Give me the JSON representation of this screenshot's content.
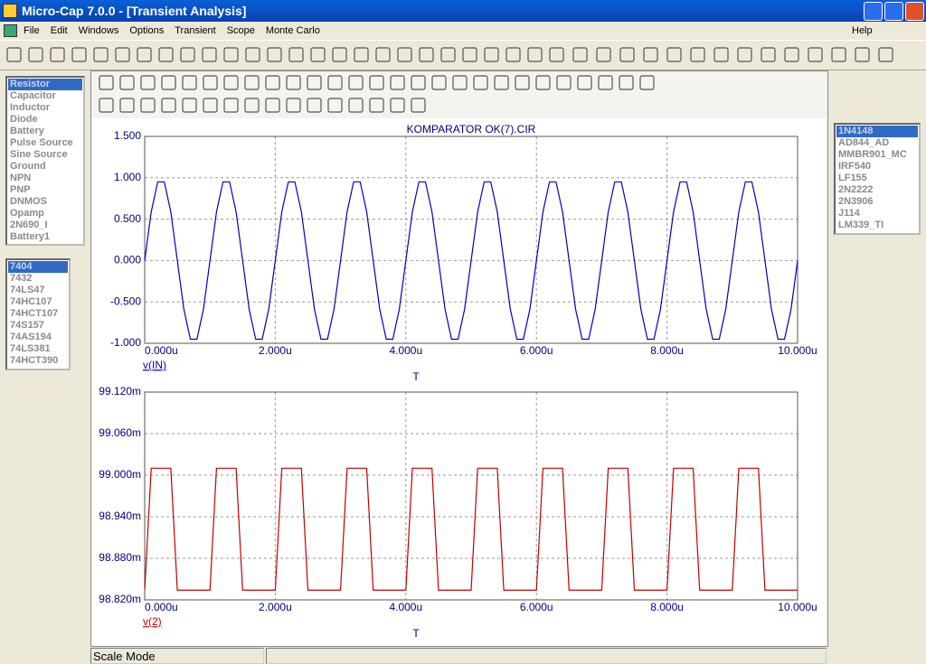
{
  "window": {
    "title": "Micro-Cap 7.0.0 - [Transient Analysis]"
  },
  "menu": [
    "File",
    "Edit",
    "Windows",
    "Options",
    "Transient",
    "Scope",
    "Monte Carlo"
  ],
  "menu_right": "Help",
  "component_list": [
    "Resistor",
    "Capacitor",
    "Inductor",
    "Diode",
    "Battery",
    "Pulse Source",
    "Sine Source",
    "Ground",
    "NPN",
    "PNP",
    "DNMOS",
    "Opamp",
    "2N690_I",
    "Battery1"
  ],
  "logic_list": [
    "7404",
    "7432",
    "74LS47",
    "74HC107",
    "74HCT107",
    "74S157",
    "74AS194",
    "74LS381",
    "74HCT390"
  ],
  "model_list": [
    "1N4148",
    "AD844_AD",
    "MMBR901_MC",
    "IRF540",
    "LF155",
    "2N2222",
    "2N3906",
    "J114",
    "LM339_TI"
  ],
  "status_bar": "Scale Mode",
  "chart_data": [
    {
      "type": "line",
      "title": "KOMPARATOR OK(7).CIR",
      "xlabel": "T",
      "x": [
        0,
        0.1,
        0.2,
        0.3,
        0.4,
        0.5,
        0.6,
        0.7,
        0.8,
        0.9,
        1,
        1.1,
        1.2,
        1.3,
        1.4,
        1.5,
        1.6,
        1.7,
        1.8,
        1.9,
        2,
        2.1,
        2.2,
        2.3,
        2.4,
        2.5,
        2.6,
        2.7,
        2.8,
        2.9,
        3,
        3.1,
        3.2,
        3.3,
        3.4,
        3.5,
        3.6,
        3.7,
        3.8,
        3.9,
        4,
        4.1,
        4.2,
        4.3,
        4.4,
        4.5,
        4.6,
        4.7,
        4.8,
        4.9,
        5,
        5.1,
        5.2,
        5.3,
        5.4,
        5.5,
        5.6,
        5.7,
        5.8,
        5.9,
        6,
        6.1,
        6.2,
        6.3,
        6.4,
        6.5,
        6.6,
        6.7,
        6.8,
        6.9,
        7,
        7.1,
        7.2,
        7.3,
        7.4,
        7.5,
        7.6,
        7.7,
        7.8,
        7.9,
        8,
        8.1,
        8.2,
        8.3,
        8.4,
        8.5,
        8.6,
        8.7,
        8.8,
        8.9,
        9,
        9.1,
        9.2,
        9.3,
        9.4,
        9.5,
        9.6,
        9.7,
        9.8,
        9.9,
        10
      ],
      "series": [
        {
          "name": "v(IN)",
          "color": "#0000c0",
          "values": [
            0,
            0.588,
            0.951,
            0.951,
            0.588,
            0,
            -0.588,
            -0.951,
            -0.951,
            -0.588,
            0,
            0.588,
            0.951,
            0.951,
            0.588,
            0,
            -0.588,
            -0.951,
            -0.951,
            -0.588,
            0,
            0.588,
            0.951,
            0.951,
            0.588,
            0,
            -0.588,
            -0.951,
            -0.951,
            -0.588,
            0,
            0.588,
            0.951,
            0.951,
            0.588,
            0,
            -0.588,
            -0.951,
            -0.951,
            -0.588,
            0,
            0.588,
            0.951,
            0.951,
            0.588,
            0,
            -0.588,
            -0.951,
            -0.951,
            -0.588,
            0,
            0.588,
            0.951,
            0.951,
            0.588,
            0,
            -0.588,
            -0.951,
            -0.951,
            -0.588,
            0,
            0.588,
            0.951,
            0.951,
            0.588,
            0,
            -0.588,
            -0.951,
            -0.951,
            -0.588,
            0,
            0.588,
            0.951,
            0.951,
            0.588,
            0,
            -0.588,
            -0.951,
            -0.951,
            -0.588,
            0,
            0.588,
            0.951,
            0.951,
            0.588,
            0,
            -0.588,
            -0.951,
            -0.951,
            -0.588,
            0,
            0.588,
            0.951,
            0.951,
            0.588,
            0,
            -0.588,
            -0.951,
            -0.951,
            -0.588,
            0
          ]
        }
      ],
      "xlim": [
        0,
        10
      ],
      "ylim": [
        -1,
        1.5
      ],
      "xticks": [
        {
          "value": 0,
          "label": "0.000u"
        },
        {
          "value": 2,
          "label": "2.000u"
        },
        {
          "value": 4,
          "label": "4.000u"
        },
        {
          "value": 6,
          "label": "6.000u"
        },
        {
          "value": 8,
          "label": "8.000u"
        },
        {
          "value": 10,
          "label": "10.000u"
        }
      ],
      "yticks": [
        {
          "value": -1,
          "label": "-1.000"
        },
        {
          "value": -0.5,
          "label": "-0.500"
        },
        {
          "value": 0,
          "label": "0.000"
        },
        {
          "value": 0.5,
          "label": "0.500"
        },
        {
          "value": 1,
          "label": "1.000"
        },
        {
          "value": 1.5,
          "label": "1.500"
        }
      ],
      "grid": true
    },
    {
      "type": "line",
      "xlabel": "T",
      "x": [
        0,
        0.1,
        0.2,
        0.3,
        0.4,
        0.5,
        0.6,
        0.7,
        0.8,
        0.9,
        1,
        1.1,
        1.2,
        1.3,
        1.4,
        1.5,
        1.6,
        1.7,
        1.8,
        1.9,
        2,
        2.1,
        2.2,
        2.3,
        2.4,
        2.5,
        2.6,
        2.7,
        2.8,
        2.9,
        3,
        3.1,
        3.2,
        3.3,
        3.4,
        3.5,
        3.6,
        3.7,
        3.8,
        3.9,
        4,
        4.1,
        4.2,
        4.3,
        4.4,
        4.5,
        4.6,
        4.7,
        4.8,
        4.9,
        5,
        5.1,
        5.2,
        5.3,
        5.4,
        5.5,
        5.6,
        5.7,
        5.8,
        5.9,
        6,
        6.1,
        6.2,
        6.3,
        6.4,
        6.5,
        6.6,
        6.7,
        6.8,
        6.9,
        7,
        7.1,
        7.2,
        7.3,
        7.4,
        7.5,
        7.6,
        7.7,
        7.8,
        7.9,
        8,
        8.1,
        8.2,
        8.3,
        8.4,
        8.5,
        8.6,
        8.7,
        8.8,
        8.9,
        9,
        9.1,
        9.2,
        9.3,
        9.4,
        9.5,
        9.6,
        9.7,
        9.8,
        9.9,
        10
      ],
      "series": [
        {
          "name": "v(2)",
          "color": "#c00000",
          "values": [
            98.834,
            99.01,
            99.01,
            99.01,
            99.01,
            98.834,
            98.834,
            98.834,
            98.834,
            98.834,
            98.834,
            99.01,
            99.01,
            99.01,
            99.01,
            98.834,
            98.834,
            98.834,
            98.834,
            98.834,
            98.834,
            99.01,
            99.01,
            99.01,
            99.01,
            98.834,
            98.834,
            98.834,
            98.834,
            98.834,
            98.834,
            99.01,
            99.01,
            99.01,
            99.01,
            98.834,
            98.834,
            98.834,
            98.834,
            98.834,
            98.834,
            99.01,
            99.01,
            99.01,
            99.01,
            98.834,
            98.834,
            98.834,
            98.834,
            98.834,
            98.834,
            99.01,
            99.01,
            99.01,
            99.01,
            98.834,
            98.834,
            98.834,
            98.834,
            98.834,
            98.834,
            99.01,
            99.01,
            99.01,
            99.01,
            98.834,
            98.834,
            98.834,
            98.834,
            98.834,
            98.834,
            99.01,
            99.01,
            99.01,
            99.01,
            98.834,
            98.834,
            98.834,
            98.834,
            98.834,
            98.834,
            99.01,
            99.01,
            99.01,
            99.01,
            98.834,
            98.834,
            98.834,
            98.834,
            98.834,
            98.834,
            99.01,
            99.01,
            99.01,
            99.01,
            98.834,
            98.834,
            98.834,
            98.834,
            98.834,
            98.834
          ]
        }
      ],
      "xlim": [
        0,
        10
      ],
      "ylim": [
        98.82,
        99.12
      ],
      "xticks": [
        {
          "value": 0,
          "label": "0.000u"
        },
        {
          "value": 2,
          "label": "2.000u"
        },
        {
          "value": 4,
          "label": "4.000u"
        },
        {
          "value": 6,
          "label": "6.000u"
        },
        {
          "value": 8,
          "label": "8.000u"
        },
        {
          "value": 10,
          "label": "10.000u"
        }
      ],
      "yticks": [
        {
          "value": 98.82,
          "label": "98.820m"
        },
        {
          "value": 98.88,
          "label": "98.880m"
        },
        {
          "value": 98.94,
          "label": "98.940m"
        },
        {
          "value": 99.0,
          "label": "99.000m"
        },
        {
          "value": 99.06,
          "label": "99.060m"
        },
        {
          "value": 99.12,
          "label": "99.120m"
        }
      ],
      "grid": true
    }
  ]
}
